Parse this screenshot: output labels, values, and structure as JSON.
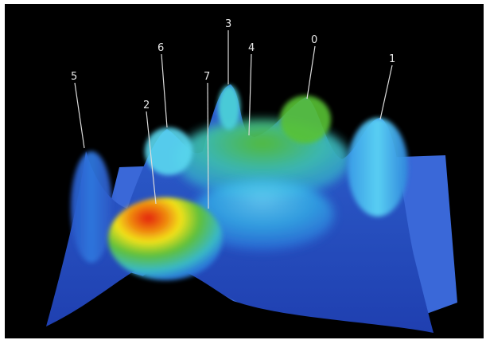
{
  "peaks": [
    {
      "id": "peak-0",
      "label": "0"
    },
    {
      "id": "peak-1",
      "label": "1"
    },
    {
      "id": "peak-2",
      "label": "2"
    },
    {
      "id": "peak-3",
      "label": "3"
    },
    {
      "id": "peak-4",
      "label": "4"
    },
    {
      "id": "peak-5",
      "label": "5"
    },
    {
      "id": "peak-6",
      "label": "6"
    },
    {
      "id": "peak-7",
      "label": "7"
    }
  ],
  "colors": {
    "background": "#000000",
    "frame": "#ffffff",
    "surface_low": "#2b4fc0",
    "surface_mid": "#2fb8e8",
    "surface_green": "#4fbf3a",
    "surface_hot": "#e22a10",
    "surface_yellow": "#f2e21a"
  }
}
